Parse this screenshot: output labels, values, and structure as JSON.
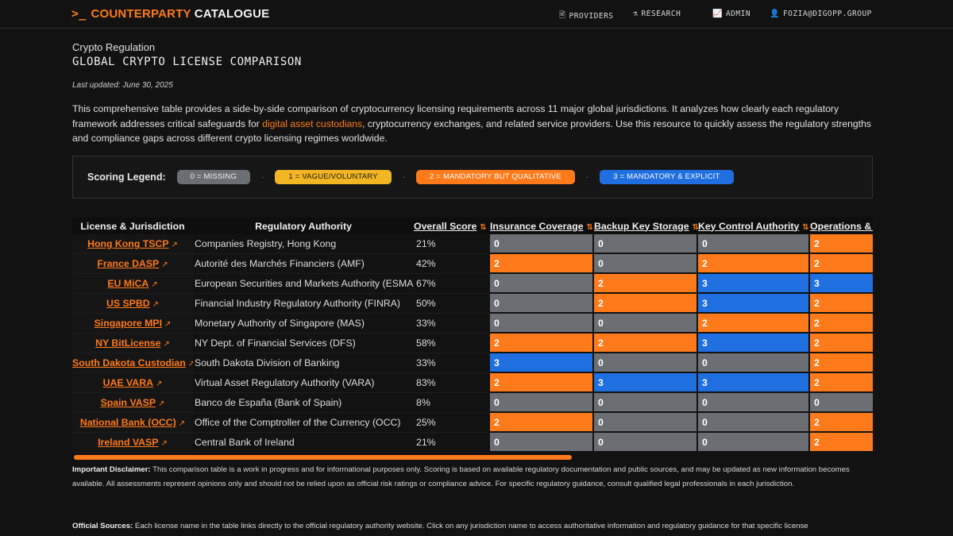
{
  "brand": {
    "prompt": ">_",
    "part1": "COUNTERPARTY",
    "part2": "CATALOGUE"
  },
  "nav": [
    {
      "icon": "🖹",
      "label": "PROVIDERS"
    },
    {
      "icon": "⚗",
      "label": "RESEARCH"
    },
    {
      "icon": "📈",
      "label": "ADMIN"
    },
    {
      "icon": "👤",
      "label": "FOZIA@DIGOPP.GROUP"
    }
  ],
  "page": {
    "category": "Crypto Regulation",
    "title": "GLOBAL CRYPTO LICENSE COMPARISON",
    "updated": "Last updated: June 30, 2025",
    "intro_a": "This comprehensive table provides a side-by-side comparison of cryptocurrency licensing requirements across 11 major global jurisdictions. It analyzes how clearly each regulatory framework addresses critical safeguards for ",
    "intro_link": "digital asset custodians",
    "intro_b": ", cryptocurrency exchanges, and related service providers. Use this resource to quickly assess the regulatory strengths and compliance gaps across different crypto licensing regimes worldwide."
  },
  "legend": {
    "label": "Scoring Legend:",
    "separator": "·",
    "items": [
      {
        "text": "0 = MISSING"
      },
      {
        "text": "1 = VAGUE/VOLUNTARY"
      },
      {
        "text": "2 = MANDATORY BUT QUALITATIVE"
      },
      {
        "text": "3 = MANDATORY & EXPLICIT"
      }
    ]
  },
  "table": {
    "headers": {
      "license": "License & Jurisdiction",
      "authority": "Regulatory Authority",
      "overall": "Overall Score",
      "insurance": "Insurance Coverage",
      "backup": "Backup Key Storage",
      "control": "Key Control Authority",
      "ops": "Operations & Audit"
    },
    "sort_icon": "⇅",
    "ext_icon": "↗",
    "rows": [
      {
        "license": "Hong Kong TSCP",
        "authority": "Companies Registry, Hong Kong",
        "overall": "21%",
        "scores": [
          0,
          0,
          0,
          2
        ]
      },
      {
        "license": "France DASP",
        "authority": "Autorité des Marchés Financiers (AMF)",
        "overall": "42%",
        "scores": [
          2,
          0,
          2,
          2
        ]
      },
      {
        "license": "EU MiCA",
        "authority": "European Securities and Markets Authority (ESMA)",
        "overall": "67%",
        "scores": [
          0,
          2,
          3,
          3
        ]
      },
      {
        "license": "US SPBD",
        "authority": "Financial Industry Regulatory Authority (FINRA)",
        "overall": "50%",
        "scores": [
          0,
          2,
          3,
          2
        ]
      },
      {
        "license": "Singapore MPI",
        "authority": "Monetary Authority of Singapore (MAS)",
        "overall": "33%",
        "scores": [
          0,
          0,
          2,
          2
        ]
      },
      {
        "license": "NY BitLicense",
        "authority": "NY Dept. of Financial Services (DFS)",
        "overall": "58%",
        "scores": [
          2,
          2,
          3,
          2
        ]
      },
      {
        "license": "South Dakota Custodian",
        "authority": "South Dakota Division of Banking",
        "overall": "33%",
        "scores": [
          3,
          0,
          0,
          2
        ]
      },
      {
        "license": "UAE VARA",
        "authority": "Virtual Asset Regulatory Authority (VARA)",
        "overall": "83%",
        "scores": [
          2,
          3,
          3,
          2
        ]
      },
      {
        "license": "Spain VASP",
        "authority": "Banco de España (Bank of Spain)",
        "overall": "8%",
        "scores": [
          0,
          0,
          0,
          0
        ]
      },
      {
        "license": "National Bank (OCC)",
        "authority": "Office of the Comptroller of the Currency (OCC)",
        "overall": "25%",
        "scores": [
          2,
          0,
          0,
          2
        ]
      },
      {
        "license": "Ireland VASP",
        "authority": "Central Bank of Ireland",
        "overall": "21%",
        "scores": [
          0,
          0,
          0,
          2
        ]
      }
    ],
    "horizontal_scroll_fraction": 0.62
  },
  "disclaimer": {
    "label": "Important Disclaimer:",
    "text": " This comparison table is a work in progress and for informational purposes only. Scoring is based on available regulatory documentation and public sources, and may be updated as new information becomes available. All assessments represent opinions only and should not be relied upon as official risk ratings or compliance advice. For specific regulatory guidance, consult qualified legal professionals in each jurisdiction."
  },
  "sources": {
    "label": "Official Sources:",
    "text": " Each license name in the table links directly to the official regulatory authority website. Click on any jurisdiction name to access authoritative information and regulatory guidance for that specific license"
  },
  "colors": {
    "accent": "#ff7a1a",
    "score0": "#6b6f74",
    "score1": "#f2b624",
    "score2": "#ff7a1a",
    "score3": "#1f6fe0"
  }
}
